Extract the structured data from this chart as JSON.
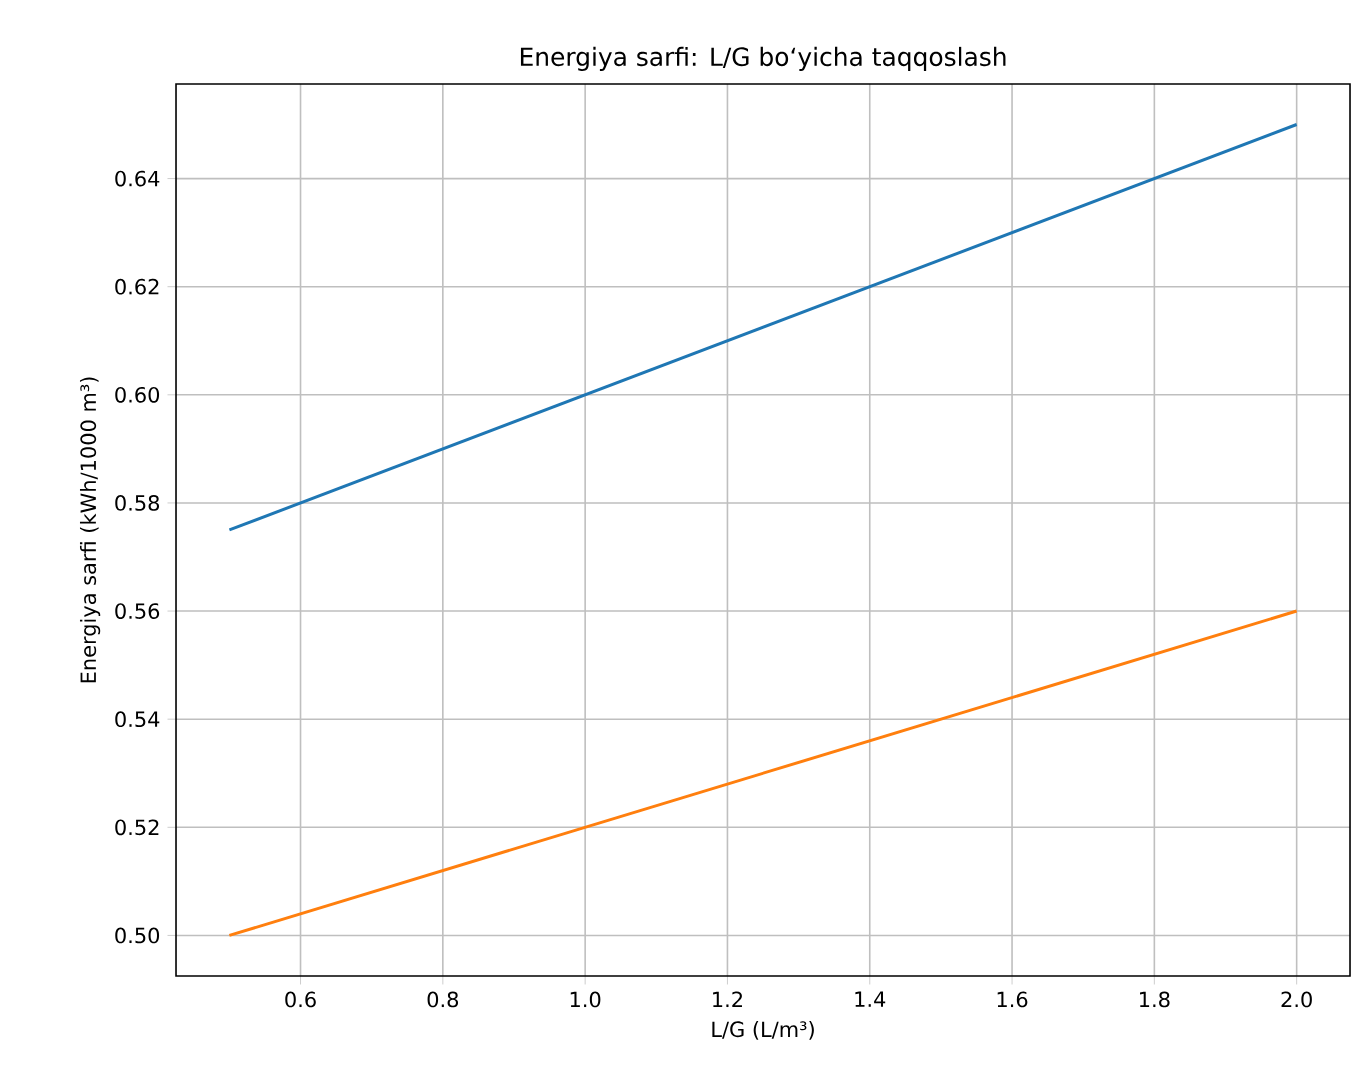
{
  "chart_data": {
    "type": "line",
    "title": "Energiya sarfi: L/G bo‘yicha taqqoslash",
    "xlabel": "L/G (L/m³)",
    "ylabel": "Energiya sarfi (kWh/1000 m³)",
    "x": [
      0.5,
      2.0
    ],
    "series": [
      {
        "color": "#1f77b4",
        "values": [
          0.575,
          0.65
        ]
      },
      {
        "color": "#ff7f0e",
        "values": [
          0.5,
          0.56
        ]
      }
    ],
    "xlim": [
      0.425,
      2.075
    ],
    "ylim": [
      0.4925,
      0.6575
    ],
    "xticks": [
      {
        "value": 0.6,
        "label": "0.6"
      },
      {
        "value": 0.8,
        "label": "0.8"
      },
      {
        "value": 1.0,
        "label": "1.0"
      },
      {
        "value": 1.2,
        "label": "1.2"
      },
      {
        "value": 1.4,
        "label": "1.4"
      },
      {
        "value": 1.6,
        "label": "1.6"
      },
      {
        "value": 1.8,
        "label": "1.8"
      },
      {
        "value": 2.0,
        "label": "2.0"
      }
    ],
    "yticks": [
      {
        "value": 0.5,
        "label": "0.50"
      },
      {
        "value": 0.52,
        "label": "0.52"
      },
      {
        "value": 0.54,
        "label": "0.54"
      },
      {
        "value": 0.56,
        "label": "0.56"
      },
      {
        "value": 0.58,
        "label": "0.58"
      },
      {
        "value": 0.6,
        "label": "0.60"
      },
      {
        "value": 0.62,
        "label": "0.62"
      },
      {
        "value": 0.64,
        "label": "0.64"
      }
    ],
    "grid": true,
    "marker": "none",
    "line_style": "solid"
  }
}
